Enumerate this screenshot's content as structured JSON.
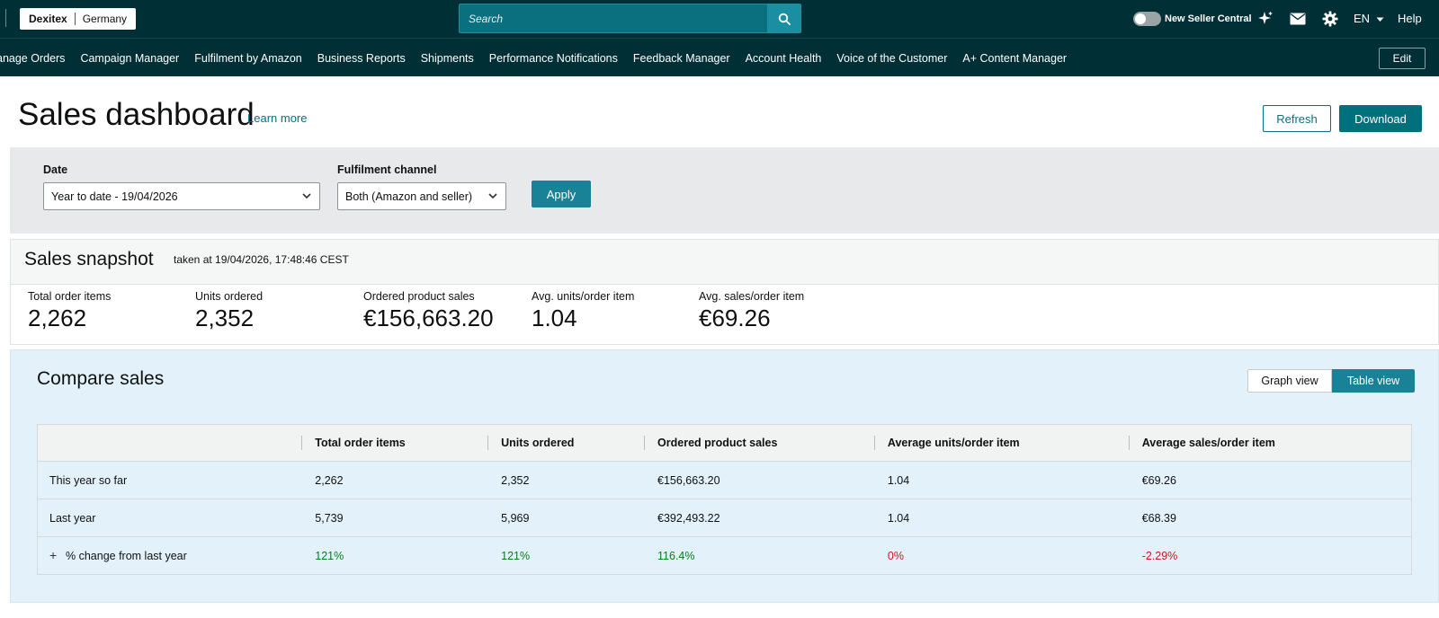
{
  "topbar": {
    "store_brand": "Dexitex",
    "store_region": "Germany",
    "search_placeholder": "Search",
    "new_seller_central": "New Seller Central",
    "language": "EN",
    "help": "Help"
  },
  "nav": {
    "items": [
      "anage Orders",
      "Campaign Manager",
      "Fulfilment by Amazon",
      "Business Reports",
      "Shipments",
      "Performance Notifications",
      "Feedback Manager",
      "Account Health",
      "Voice of the Customer",
      "A+ Content Manager"
    ],
    "edit": "Edit"
  },
  "header": {
    "title": "Sales dashboard",
    "learn_more": "Learn more",
    "refresh": "Refresh",
    "download": "Download"
  },
  "filters": {
    "date_label": "Date",
    "date_value": "Year to date - 19/04/2026",
    "channel_label": "Fulfilment channel",
    "channel_value": "Both (Amazon and seller)",
    "apply": "Apply"
  },
  "snapshot": {
    "title": "Sales snapshot",
    "taken_at": "taken at 19/04/2026, 17:48:46 CEST",
    "metrics": [
      {
        "label": "Total order items",
        "value": "2,262"
      },
      {
        "label": "Units ordered",
        "value": "2,352"
      },
      {
        "label": "Ordered product sales",
        "value": "€156,663.20"
      },
      {
        "label": "Avg. units/order item",
        "value": "1.04"
      },
      {
        "label": "Avg. sales/order item",
        "value": "€69.26"
      }
    ]
  },
  "compare": {
    "title": "Compare sales",
    "graph_view": "Graph view",
    "table_view": "Table view",
    "columns": [
      "",
      "Total order items",
      "Units ordered",
      "Ordered product sales",
      "Average units/order item",
      "Average sales/order item"
    ],
    "rows": [
      {
        "label": "This year so far",
        "cells": [
          "2,262",
          "2,352",
          "€156,663.20",
          "1.04",
          "€69.26"
        ]
      },
      {
        "label": "Last year",
        "cells": [
          "5,739",
          "5,969",
          "€392,493.22",
          "1.04",
          "€68.39"
        ]
      },
      {
        "label": "% change from last year",
        "cells": [
          "121%",
          "121%",
          "116.4%",
          "0%",
          "-2.29%"
        ]
      }
    ]
  },
  "colors": {
    "topbar_bg": "#002f36",
    "accent": "#1a8296",
    "positive": "#067d1a",
    "negative": "#d1121b"
  }
}
